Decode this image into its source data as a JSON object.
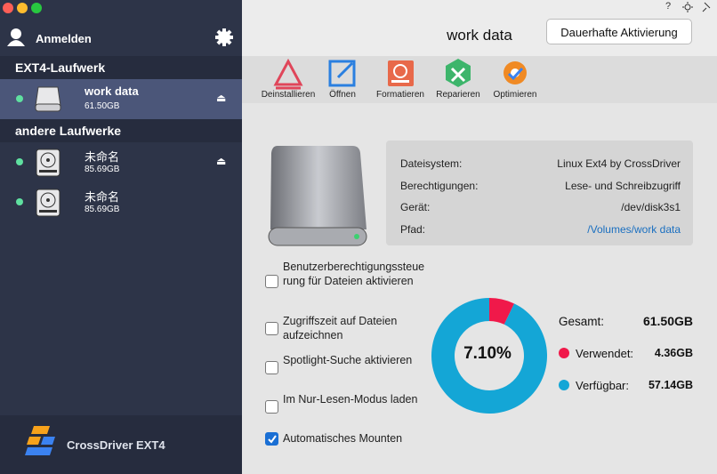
{
  "sidebar": {
    "login": "Anmelden",
    "sections": [
      {
        "title": "EXT4-Laufwerk",
        "drives": [
          {
            "name": "work data",
            "size": "61.50GB",
            "selected": true,
            "eject": true
          }
        ]
      },
      {
        "title": "andere Laufwerke",
        "drives": [
          {
            "name": "未命名",
            "size": "85.69GB",
            "selected": false,
            "eject": true
          },
          {
            "name": "未命名",
            "size": "85.69GB",
            "selected": false,
            "eject": false
          }
        ]
      }
    ],
    "brand": "CrossDriver EXT4"
  },
  "header": {
    "title": "work data",
    "button": "Dauerhafte Aktivierung",
    "help": "?"
  },
  "toolbar": [
    "Deinstallieren",
    "Öffnen",
    "Formatieren",
    "Reparieren",
    "Optimieren"
  ],
  "info": {
    "rows": [
      {
        "label": "Dateisystem:",
        "value": "Linux Ext4 by CrossDriver"
      },
      {
        "label": "Berechtigungen:",
        "value": "Lese- und Schreibzugriff"
      },
      {
        "label": "Gerät:",
        "value": "/dev/disk3s1"
      },
      {
        "label": "Pfad:",
        "value": "/Volumes/work data",
        "link": true
      }
    ]
  },
  "options": [
    {
      "label": "Benutzerberechtigungssteuerung für Dateien aktivieren",
      "checked": false
    },
    {
      "label": "Zugriffszeit auf Dateien aufzeichnen",
      "checked": false
    },
    {
      "label": "Spotlight-Suche aktivieren",
      "checked": false
    },
    {
      "label": "Im Nur-Lesen-Modus laden",
      "checked": false
    },
    {
      "label": "Automatisches Mounten",
      "checked": true
    }
  ],
  "storage": {
    "center_label": "7.10%",
    "total": {
      "name": "Gesamt:",
      "value_label": "61.50GB"
    },
    "segments": [
      {
        "name": "Verwendet:",
        "value": 4.36,
        "value_label": "4.36GB",
        "color": "#f0194a"
      },
      {
        "name": "Verfügbar:",
        "value": 57.14,
        "value_label": "57.14GB",
        "color": "#14a6d6"
      }
    ]
  }
}
